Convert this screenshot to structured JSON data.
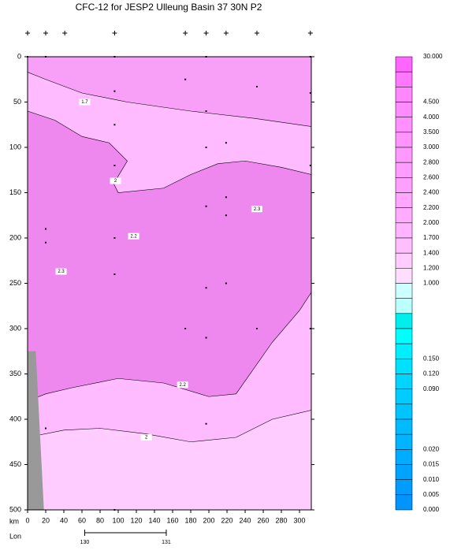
{
  "chart_data": {
    "type": "contour",
    "title": "CFC-12 for JESP2 Ulleung Basin 37 30N P2",
    "x_label": "km",
    "lon_label": "Lon",
    "xlim": [
      0,
      313
    ],
    "ylim": [
      0,
      500
    ],
    "xticks": [
      0,
      20,
      40,
      60,
      80,
      100,
      120,
      140,
      160,
      180,
      200,
      220,
      240,
      260,
      280,
      300
    ],
    "yticks": [
      0,
      50,
      100,
      150,
      200,
      250,
      300,
      350,
      400,
      450,
      500
    ],
    "lon_ticks": [
      {
        "value": 63,
        "label": "130"
      },
      {
        "value": 153,
        "label": "131"
      }
    ],
    "stations": [
      0,
      20,
      41,
      96,
      174,
      197,
      219,
      253,
      312
    ],
    "regions": [
      {
        "color": "#ffbbff",
        "points": [
          [
            0,
            0
          ],
          [
            313,
            0
          ],
          [
            313,
            500
          ],
          [
            0,
            500
          ]
        ]
      },
      {
        "color": "#f8a0f8",
        "points": [
          [
            0,
            0
          ],
          [
            313,
            0
          ],
          [
            313,
            77
          ],
          [
            250,
            68
          ],
          [
            180,
            60
          ],
          [
            110,
            50
          ],
          [
            60,
            40
          ],
          [
            20,
            25
          ],
          [
            0,
            17
          ]
        ]
      },
      {
        "color": "#ee88ee",
        "points": [
          [
            0,
            60
          ],
          [
            30,
            70
          ],
          [
            60,
            88
          ],
          [
            90,
            95
          ],
          [
            110,
            115
          ],
          [
            95,
            140
          ],
          [
            100,
            150
          ],
          [
            150,
            145
          ],
          [
            180,
            130
          ],
          [
            210,
            118
          ],
          [
            240,
            115
          ],
          [
            280,
            122
          ],
          [
            313,
            130
          ],
          [
            313,
            260
          ],
          [
            300,
            280
          ],
          [
            270,
            315
          ],
          [
            230,
            372
          ],
          [
            200,
            375
          ],
          [
            150,
            360
          ],
          [
            100,
            355
          ],
          [
            50,
            365
          ],
          [
            20,
            372
          ],
          [
            0,
            380
          ]
        ]
      },
      {
        "color": "#ffccff",
        "points": [
          [
            0,
            420
          ],
          [
            40,
            412
          ],
          [
            80,
            410
          ],
          [
            130,
            416
          ],
          [
            180,
            425
          ],
          [
            230,
            420
          ],
          [
            270,
            400
          ],
          [
            313,
            390
          ],
          [
            313,
            500
          ],
          [
            0,
            500
          ]
        ]
      }
    ],
    "contour_labels": [
      {
        "text": "1.7",
        "x": 63,
        "y": 50
      },
      {
        "text": "2",
        "x": 97,
        "y": 137
      },
      {
        "text": "2.2",
        "x": 117,
        "y": 198
      },
      {
        "text": "2.3",
        "x": 37,
        "y": 237
      },
      {
        "text": "2.3",
        "x": 253,
        "y": 168
      },
      {
        "text": "2.2",
        "x": 171,
        "y": 362
      },
      {
        "text": "2",
        "x": 131,
        "y": 420
      }
    ],
    "samples": {
      "x": [
        0,
        20,
        96,
        197,
        312,
        174,
        253,
        96,
        197,
        312,
        96,
        197,
        219,
        96,
        312,
        219,
        197,
        219,
        96,
        20,
        96,
        219,
        197,
        174,
        253,
        197,
        312,
        20,
        197,
        96,
        20
      ],
      "y": [
        0,
        0,
        0,
        0,
        0,
        25,
        33,
        38,
        60,
        40,
        75,
        100,
        95,
        120,
        120,
        155,
        165,
        175,
        200,
        205,
        240,
        250,
        255,
        300,
        300,
        310,
        300,
        410,
        405,
        500,
        190
      ]
    },
    "bottom": [
      [
        0,
        325
      ],
      [
        9,
        325
      ],
      [
        18,
        500
      ],
      [
        0,
        500
      ]
    ],
    "colorbar": {
      "labels": [
        "30.000",
        null,
        null,
        "4.500",
        "4.000",
        "3.500",
        "3.000",
        "2.800",
        "2.600",
        "2.400",
        "2.200",
        "2.000",
        "1.700",
        "1.400",
        "1.200",
        "1.000",
        null,
        null,
        null,
        null,
        "0.150",
        "0.120",
        "0.090",
        null,
        null,
        null,
        "0.020",
        "0.015",
        "0.010",
        "0.005",
        "0.000"
      ],
      "colors": [
        "#ff66ff",
        "#ff77ff",
        "#ff88ff",
        "#ff8cff",
        "#ff90ff",
        "#ff94ff",
        "#ff98ff",
        "#ff9cff",
        "#ffa0ff",
        "#ffa6ff",
        "#ffacff",
        "#ffb4ff",
        "#ffbfff",
        "#ffccff",
        "#ffddff",
        "#ccffff",
        "#bbffff",
        "#00eeee",
        "#00ffff",
        "#00eeff",
        "#00e0ff",
        "#00d4ff",
        "#00ccff",
        "#00c4ff",
        "#00bcff",
        "#00b4ff",
        "#00acff",
        "#00a4ff",
        "#009cff",
        "#0094ff"
      ]
    }
  }
}
